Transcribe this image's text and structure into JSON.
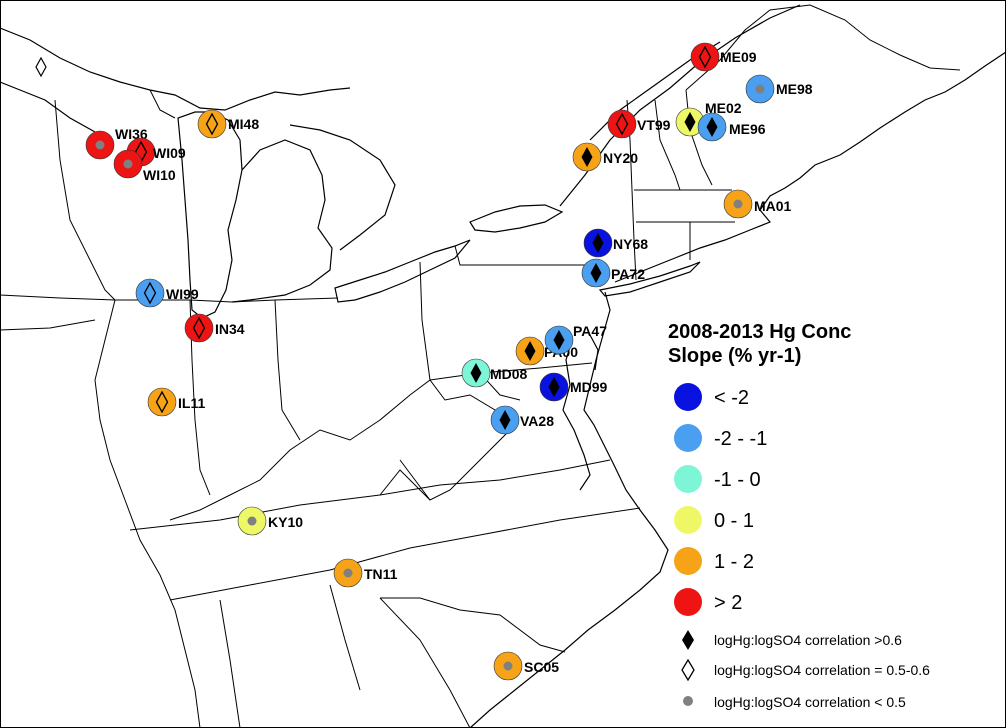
{
  "legend": {
    "title_line1": "2008-2013 Hg Conc",
    "title_line2": "Slope (% yr-1)",
    "classes": [
      {
        "label": "< -2",
        "color": "#0a12e0"
      },
      {
        "label": "-2 - -1",
        "color": "#4a9ff0"
      },
      {
        "label": "-1 - 0",
        "color": "#7ff5d8"
      },
      {
        "label": "0 - 1",
        "color": "#eef866"
      },
      {
        "label": "1 - 2",
        "color": "#f7a318"
      },
      {
        "label": "> 2",
        "color": "#ef1414"
      }
    ],
    "symbols": [
      {
        "label": "logHg:logSO4 correlation >0.6",
        "symbol": "filled-diamond"
      },
      {
        "label": "logHg:logSO4 correlation = 0.5-0.6",
        "symbol": "open-diamond"
      },
      {
        "label": "logHg:logSO4 correlation < 0.5",
        "symbol": "gray-dot"
      }
    ]
  },
  "sites": [
    {
      "id": "WI36",
      "class": 5,
      "symbol": "gray-dot"
    },
    {
      "id": "WI09",
      "class": 5,
      "symbol": "open-diamond"
    },
    {
      "id": "WI10",
      "class": 5,
      "symbol": "gray-dot"
    },
    {
      "id": "MI48",
      "class": 4,
      "symbol": "open-diamond"
    },
    {
      "id": "WI99",
      "class": 1,
      "symbol": "open-diamond"
    },
    {
      "id": "IN34",
      "class": 5,
      "symbol": "open-diamond"
    },
    {
      "id": "IL11",
      "class": 4,
      "symbol": "open-diamond"
    },
    {
      "id": "KY10",
      "class": 3,
      "symbol": "gray-dot"
    },
    {
      "id": "TN11",
      "class": 4,
      "symbol": "gray-dot"
    },
    {
      "id": "SC05",
      "class": 4,
      "symbol": "gray-dot"
    },
    {
      "id": "MD08",
      "class": 2,
      "symbol": "filled-diamond"
    },
    {
      "id": "VA28",
      "class": 1,
      "symbol": "filled-diamond"
    },
    {
      "id": "MD99",
      "class": 0,
      "symbol": "filled-diamond"
    },
    {
      "id": "PA00",
      "class": 4,
      "symbol": "filled-diamond"
    },
    {
      "id": "PA47",
      "class": 1,
      "symbol": "filled-diamond"
    },
    {
      "id": "PA72",
      "class": 1,
      "symbol": "filled-diamond"
    },
    {
      "id": "NY68",
      "class": 0,
      "symbol": "filled-diamond"
    },
    {
      "id": "NY20",
      "class": 4,
      "symbol": "filled-diamond"
    },
    {
      "id": "VT99",
      "class": 5,
      "symbol": "open-diamond"
    },
    {
      "id": "ME02",
      "class": 3,
      "symbol": "filled-diamond"
    },
    {
      "id": "ME96",
      "class": 1,
      "symbol": "filled-diamond"
    },
    {
      "id": "ME09",
      "class": 5,
      "symbol": "open-diamond"
    },
    {
      "id": "ME98",
      "class": 1,
      "symbol": "gray-dot"
    },
    {
      "id": "MA01",
      "class": 4,
      "symbol": "gray-dot"
    }
  ]
}
